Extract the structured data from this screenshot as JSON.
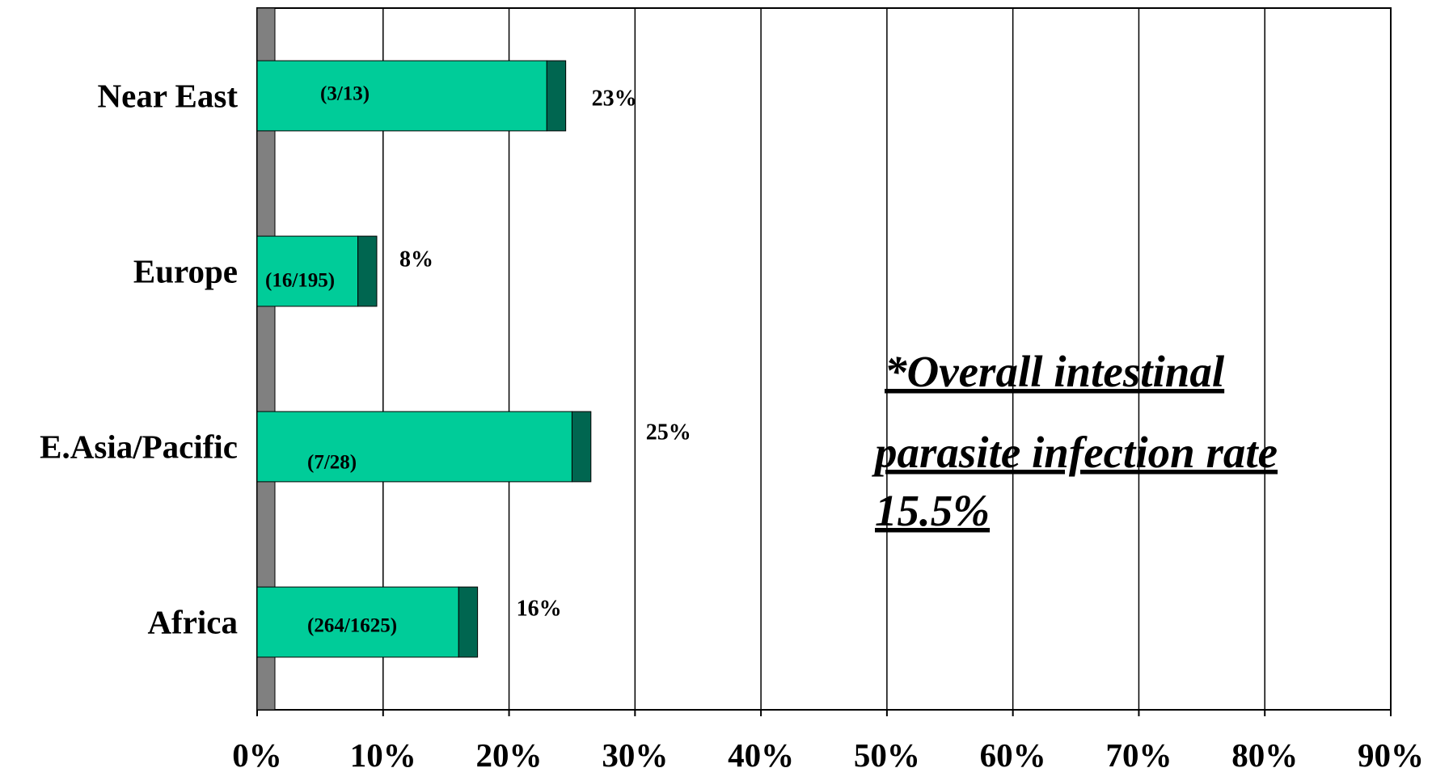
{
  "chart_data": {
    "type": "bar",
    "orientation": "horizontal",
    "stacked": true,
    "categories": [
      "Near East",
      "Europe",
      "E.Asia/Pacific",
      "Africa"
    ],
    "series": [
      {
        "values": [
          23,
          8,
          25,
          16
        ]
      },
      {
        "values": [
          1.5,
          1.5,
          1.5,
          1.5
        ]
      }
    ],
    "fraction_labels": [
      "(3/13)",
      "(16/195)",
      "(7/28)",
      "(264/1625)"
    ],
    "percent_labels": [
      "23%",
      "8%",
      "25%",
      "16%"
    ],
    "xticks": [
      "0%",
      "10%",
      "20%",
      "30%",
      "40%",
      "50%",
      "60%",
      "70%",
      "80%",
      "90%"
    ],
    "xlim": [
      0,
      90
    ],
    "grid": "vertical",
    "annotation": [
      "*Overall intestinal",
      "parasite infection rate",
      "15.5%"
    ],
    "colors": {
      "bar": "#00cc99",
      "bar_cap": "#006650",
      "y_axis_band": "#808080",
      "grid": "#000000"
    }
  }
}
